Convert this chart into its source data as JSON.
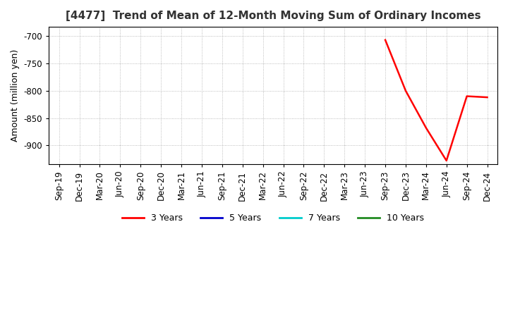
{
  "title": "[4477]  Trend of Mean of 12-Month Moving Sum of Ordinary Incomes",
  "ylabel": "Amount (million yen)",
  "ylim": [
    -935,
    -683
  ],
  "yticks": [
    -900,
    -850,
    -800,
    -750,
    -700
  ],
  "x_labels": [
    "Sep-19",
    "Dec-19",
    "Mar-20",
    "Jun-20",
    "Sep-20",
    "Dec-20",
    "Mar-21",
    "Jun-21",
    "Sep-21",
    "Dec-21",
    "Mar-22",
    "Jun-22",
    "Sep-22",
    "Dec-22",
    "Mar-23",
    "Jun-23",
    "Sep-23",
    "Dec-23",
    "Mar-24",
    "Jun-24",
    "Sep-24",
    "Dec-24"
  ],
  "line_3yr": {
    "x_indices": [
      16,
      17,
      18,
      19,
      20,
      21
    ],
    "y_values": [
      -707,
      -800,
      -868,
      -928,
      -810,
      -812
    ],
    "color": "#FF0000",
    "label": "3 Years",
    "linewidth": 1.8
  },
  "legend_entries": [
    {
      "label": "3 Years",
      "color": "#FF0000"
    },
    {
      "label": "5 Years",
      "color": "#0000CC"
    },
    {
      "label": "7 Years",
      "color": "#00CCCC"
    },
    {
      "label": "10 Years",
      "color": "#228B22"
    }
  ],
  "background_color": "#FFFFFF",
  "grid_color": "#AAAAAA",
  "title_fontsize": 11,
  "axis_fontsize": 9,
  "tick_fontsize": 8.5
}
